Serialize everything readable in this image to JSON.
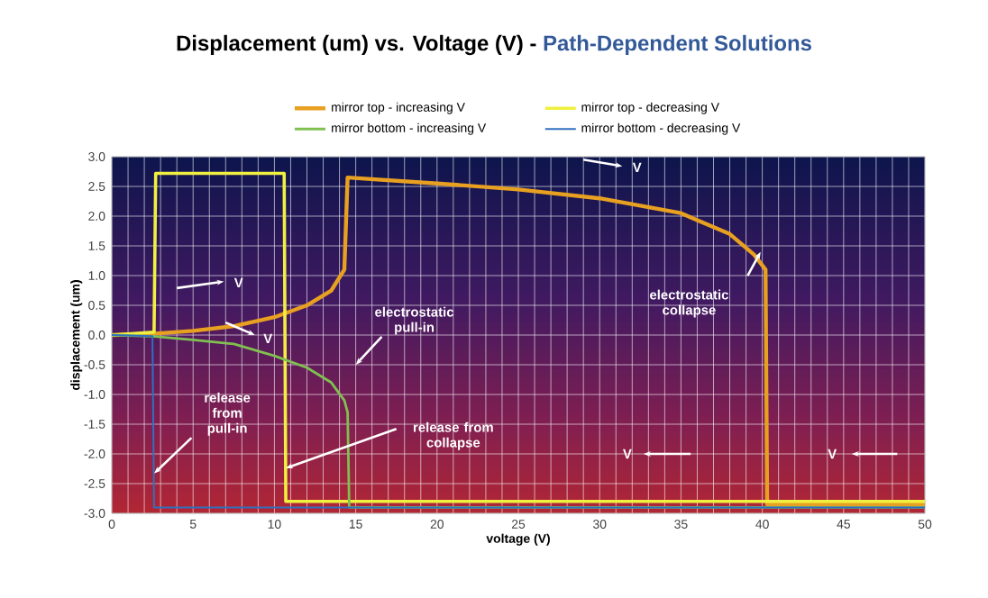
{
  "chart_data": {
    "type": "line",
    "title": "Displacement (um) vs. Voltage (V) -",
    "subtitle": "Path-Dependent Solutions",
    "xlabel": "voltage (V)",
    "ylabel": "displacement (um)",
    "xlim": [
      0,
      50
    ],
    "ylim": [
      -3,
      3
    ],
    "xticks": [
      0,
      {
        "value": 1,
        "label": null
      },
      {
        "value": 2,
        "label": null
      },
      {
        "value": 3,
        "label": null
      },
      {
        "value": 4,
        "label": null
      },
      5,
      {
        "value": 6,
        "label": null
      },
      {
        "value": 7,
        "label": null
      },
      {
        "value": 8,
        "label": null
      },
      {
        "value": 9,
        "label": null
      },
      10,
      {
        "value": 11,
        "label": null
      },
      {
        "value": 12,
        "label": null
      },
      {
        "value": 13,
        "label": null
      },
      {
        "value": 14,
        "label": null
      },
      15,
      {
        "value": 16,
        "label": null
      },
      {
        "value": 17,
        "label": null
      },
      {
        "value": 18,
        "label": null
      },
      {
        "value": 19,
        "label": null
      },
      20,
      {
        "value": 21,
        "label": null
      },
      {
        "value": 22,
        "label": null
      },
      {
        "value": 23,
        "label": null
      },
      {
        "value": 24,
        "label": null
      },
      25,
      {
        "value": 26,
        "label": null
      },
      {
        "value": 27,
        "label": null
      },
      {
        "value": 28,
        "label": null
      },
      {
        "value": 29,
        "label": null
      },
      30,
      {
        "value": 31,
        "label": null
      },
      {
        "value": 32,
        "label": null
      },
      {
        "value": 33,
        "label": null
      },
      {
        "value": 34,
        "label": null
      },
      35,
      {
        "value": 36,
        "label": null
      },
      {
        "value": 37,
        "label": null
      },
      {
        "value": 38,
        "label": null
      },
      {
        "value": 39,
        "label": null
      },
      40,
      {
        "value": 41,
        "label": null
      },
      {
        "value": 42,
        "label": null
      },
      {
        "value": 43,
        "label": null
      },
      {
        "value": 44,
        "label": null
      },
      45,
      {
        "value": 46,
        "label": null
      },
      {
        "value": 47,
        "label": null
      },
      {
        "value": 48,
        "label": null
      },
      {
        "value": 49,
        "label": null
      },
      50
    ],
    "yticks": [
      {
        "value": -3,
        "label": "-3.0"
      },
      {
        "value": -2.5,
        "label": "-2.5"
      },
      {
        "value": -2,
        "label": "-2.0"
      },
      {
        "value": -1.5,
        "label": "-1.5"
      },
      {
        "value": -1,
        "label": "-1.0"
      },
      {
        "value": -0.5,
        "label": "-0.5"
      },
      {
        "value": 0,
        "label": "0.0"
      },
      {
        "value": 0.5,
        "label": "0.5"
      },
      {
        "value": 1,
        "label": "1.0"
      },
      {
        "value": 1.5,
        "label": "1.5"
      },
      {
        "value": 2,
        "label": "2.0"
      },
      {
        "value": 2.5,
        "label": "2.5"
      },
      {
        "value": 3,
        "label": "3.0"
      }
    ],
    "grid": true,
    "legend": "top",
    "marker": "none",
    "line_style": "solid",
    "series": [
      {
        "name": "mirror top - increasing V",
        "color": "#e8a020",
        "x": [
          0,
          2.5,
          5,
          7.5,
          10,
          12,
          13.5,
          14.3,
          14.5,
          20,
          25,
          30,
          35,
          38,
          39.5,
          40.2,
          40.3,
          50
        ],
        "values": [
          0,
          0.02,
          0.07,
          0.15,
          0.3,
          0.5,
          0.75,
          1.1,
          2.65,
          2.55,
          2.45,
          2.3,
          2.05,
          1.7,
          1.35,
          1.1,
          -2.85,
          -2.85
        ]
      },
      {
        "name": "mirror top - decreasing V",
        "color": "#f0f040",
        "x": [
          50,
          10.7,
          10.6,
          2.7,
          2.6,
          0
        ],
        "values": [
          -2.8,
          -2.8,
          2.72,
          2.72,
          0.05,
          0
        ]
      },
      {
        "name": "mirror bottom - increasing V",
        "color": "#80c050",
        "x": [
          0,
          2.5,
          5,
          7.5,
          10,
          12,
          13.5,
          14.3,
          14.5,
          14.6,
          50
        ],
        "values": [
          0,
          -0.02,
          -0.08,
          -0.15,
          -0.35,
          -0.55,
          -0.8,
          -1.1,
          -1.3,
          -2.9,
          -2.9
        ]
      },
      {
        "name": "mirror bottom - decreasing V",
        "color": "#3070c0",
        "x": [
          50,
          2.6,
          2.5,
          0
        ],
        "values": [
          -2.9,
          -2.9,
          -0.02,
          0
        ]
      }
    ],
    "annotations": [
      "V",
      "V",
      "V",
      "electrostatic pull-in",
      {
        "text": "release from pull-in",
        "x": 2.6,
        "y": -2.33
      },
      {
        "text": "release from collapse",
        "x": 10.7,
        "y": -2.24
      },
      "electrostatic collapse",
      "V",
      "V"
    ]
  }
}
